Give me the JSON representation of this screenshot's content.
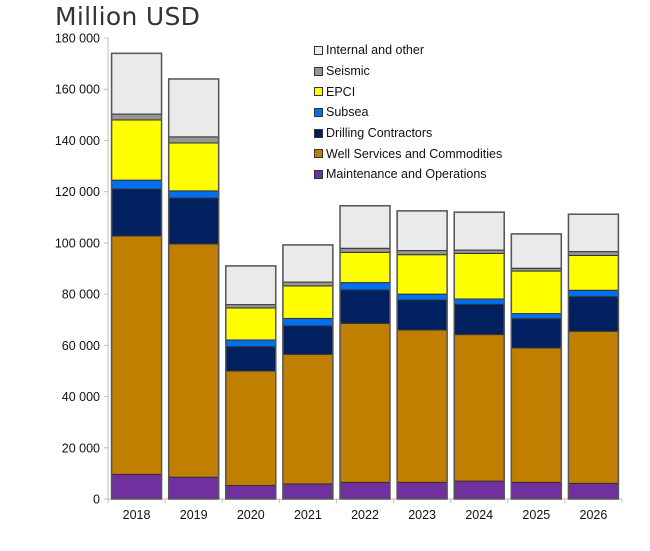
{
  "chart_data": {
    "type": "bar",
    "stacked": true,
    "title": "Million USD",
    "xlabel": "",
    "ylabel": "Million USD",
    "ylim": [
      0,
      180000
    ],
    "yticks": [
      0,
      20000,
      40000,
      60000,
      80000,
      100000,
      120000,
      140000,
      160000,
      180000
    ],
    "ytick_labels": [
      "0",
      "20 000",
      "40 000",
      "60 000",
      "80 000",
      "100 000",
      "120 000",
      "140 000",
      "160 000",
      "180 000"
    ],
    "grid": false,
    "legend_position": "top-right",
    "categories": [
      "2018",
      "2019",
      "2020",
      "2021",
      "2022",
      "2023",
      "2024",
      "2025",
      "2026"
    ],
    "series": [
      {
        "name": "Maintenance and Operations",
        "color": "#7030A0",
        "values": [
          9600,
          8500,
          5300,
          5900,
          6500,
          6500,
          7000,
          6500,
          6100
        ]
      },
      {
        "name": "Well Services and Commodities",
        "color": "#C07F00",
        "values": [
          93100,
          91100,
          44700,
          50600,
          62100,
          59500,
          57200,
          52500,
          59400
        ]
      },
      {
        "name": "Drilling Contractors",
        "color": "#002060",
        "values": [
          18300,
          17900,
          9500,
          11100,
          13000,
          11700,
          11800,
          11400,
          13500
        ]
      },
      {
        "name": "Subsea",
        "color": "#0070F0",
        "values": [
          3500,
          2800,
          2600,
          2900,
          2900,
          2300,
          2100,
          2000,
          2500
        ]
      },
      {
        "name": "EPCI",
        "color": "#FFFF00",
        "values": [
          23500,
          18700,
          12500,
          12700,
          11800,
          15400,
          17800,
          16600,
          13600
        ]
      },
      {
        "name": "Seismic",
        "color": "#969696",
        "values": [
          2300,
          2400,
          1300,
          1500,
          1600,
          1600,
          1300,
          1100,
          1500
        ]
      },
      {
        "name": "Internal and other",
        "color": "#EAEAEA",
        "values": [
          23700,
          22600,
          15100,
          14500,
          16600,
          15500,
          14800,
          13400,
          14600
        ]
      }
    ],
    "totals": [
      174000,
      164000,
      91000,
      99200,
      114500,
      112500,
      112000,
      103500,
      111200
    ]
  },
  "legend": {
    "items": [
      {
        "label": "Internal and other",
        "color": "#EAEAEA"
      },
      {
        "label": "Seismic",
        "color": "#969696"
      },
      {
        "label": "EPCI",
        "color": "#FFFF00"
      },
      {
        "label": "Subsea",
        "color": "#0070F0"
      },
      {
        "label": "Drilling Contractors",
        "color": "#002060"
      },
      {
        "label": "Well Services and Commodities",
        "color": "#C07F00"
      },
      {
        "label": "Maintenance and Operations",
        "color": "#7030A0"
      }
    ]
  }
}
